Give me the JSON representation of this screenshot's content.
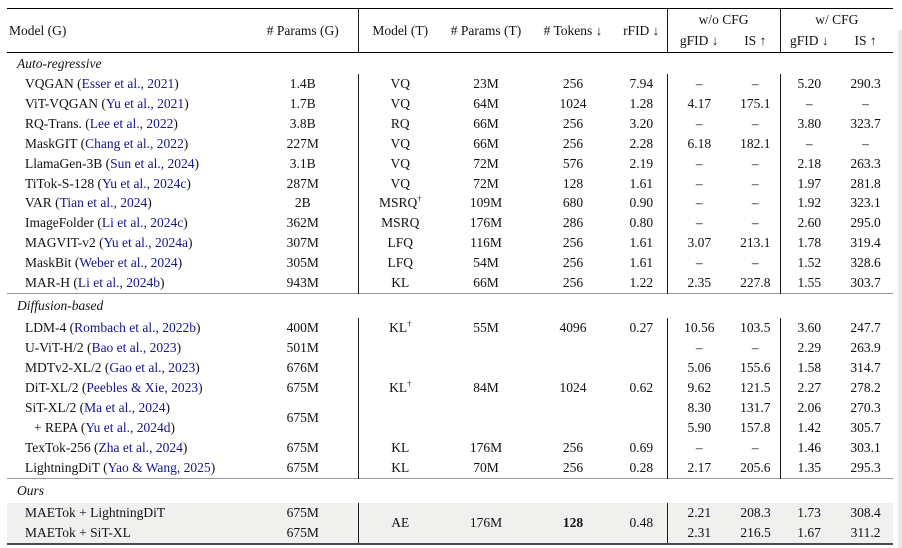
{
  "page": {
    "background": "#ffffff"
  },
  "colors": {
    "citation_link": "#15158c",
    "highlight_row": "#f0f0ee",
    "rule_dark": "#000000",
    "rule_mid": "#999999",
    "right_edge_artifact": "#eaeaea"
  },
  "header": {
    "cols": [
      "Model (G)",
      "# Params (G)",
      "Model (T)",
      "# Params (T)",
      "# Tokens ↓",
      "rFID ↓"
    ],
    "groups": [
      "w/o CFG",
      "w/ CFG"
    ],
    "subcols": [
      "gFID ↓",
      "IS ↑",
      "gFID ↓",
      "IS ↑"
    ]
  },
  "table": {
    "sections": [
      {
        "label": "Auto-regressive",
        "highlight": false,
        "rows": [
          {
            "model": {
              "pre": "VQGAN (",
              "cite": "Esser et al., 2021",
              "post": ")"
            },
            "cells": [
              "1.4B",
              "VQ",
              "23M",
              "256",
              "7.94",
              "–",
              "–",
              "5.20",
              "290.3"
            ]
          },
          {
            "model": {
              "pre": "ViT-VQGAN (",
              "cite": "Yu et al., 2021",
              "post": ")"
            },
            "cells": [
              "1.7B",
              "VQ",
              "64M",
              "1024",
              "1.28",
              "4.17",
              "175.1",
              "–",
              "–"
            ]
          },
          {
            "model": {
              "pre": "RQ-Trans. (",
              "cite": "Lee et al., 2022",
              "post": ")"
            },
            "cells": [
              "3.8B",
              "RQ",
              "66M",
              "256",
              "3.20",
              "–",
              "–",
              "3.80",
              "323.7"
            ]
          },
          {
            "model": {
              "pre": "MaskGIT (",
              "cite": "Chang et al., 2022",
              "post": ")"
            },
            "cells": [
              "227M",
              "VQ",
              "66M",
              "256",
              "2.28",
              "6.18",
              "182.1",
              "–",
              "–"
            ]
          },
          {
            "model": {
              "pre": "LlamaGen-3B (",
              "cite": "Sun et al., 2024",
              "post": ")"
            },
            "cells": [
              "3.1B",
              "VQ",
              "72M",
              "576",
              "2.19",
              "–",
              "–",
              "2.18",
              "263.3"
            ]
          },
          {
            "model": {
              "pre": "TiTok-S-128 (",
              "cite": "Yu et al., 2024c",
              "post": ")"
            },
            "cells": [
              "287M",
              "VQ",
              "72M",
              "128",
              "1.61",
              "–",
              "–",
              "1.97",
              "281.8"
            ]
          },
          {
            "model": {
              "pre": "VAR (",
              "cite": "Tian et al., 2024",
              "post": ")"
            },
            "cells": [
              "2B",
              {
                "t": "MSRQ",
                "sup": "†"
              },
              "109M",
              "680",
              "0.90",
              "–",
              "–",
              "1.92",
              "323.1"
            ]
          },
          {
            "model": {
              "pre": "ImageFolder (",
              "cite": "Li et al., 2024c",
              "post": ")"
            },
            "cells": [
              "362M",
              "MSRQ",
              "176M",
              "286",
              "0.80",
              "–",
              "–",
              "2.60",
              "295.0"
            ]
          },
          {
            "model": {
              "pre": "MAGVIT-v2 (",
              "cite": "Yu et al., 2024a",
              "post": ")"
            },
            "cells": [
              "307M",
              "LFQ",
              "116M",
              "256",
              "1.61",
              "3.07",
              "213.1",
              "1.78",
              "319.4"
            ]
          },
          {
            "model": {
              "pre": "MaskBit (",
              "cite": "Weber et al., 2024",
              "post": ")"
            },
            "cells": [
              "305M",
              "LFQ",
              "54M",
              "256",
              "1.61",
              "–",
              "–",
              "1.52",
              "328.6"
            ]
          },
          {
            "model": {
              "pre": "MAR-H (",
              "cite": "Li et al., 2024b",
              "post": ")"
            },
            "cells": [
              "943M",
              "KL",
              "66M",
              "256",
              "1.22",
              "2.35",
              "227.8",
              "1.55",
              "303.7"
            ]
          }
        ]
      },
      {
        "label": "Diffusion-based",
        "highlight": false,
        "rows": [
          {
            "model": {
              "pre": "LDM-4 (",
              "cite": "Rombach et al., 2022b",
              "post": ")"
            },
            "cells": [
              "400M",
              {
                "t": "KL",
                "sup": "†"
              },
              "55M",
              "4096",
              "0.27",
              "10.56",
              "103.5",
              "3.60",
              "247.7"
            ]
          },
          {
            "model": {
              "pre": "U-ViT-H/2 (",
              "cite": "Bao et al., 2023",
              "post": ")"
            },
            "cells": [
              "501M",
              "",
              "",
              "",
              "",
              "–",
              "–",
              "2.29",
              "263.9"
            ]
          },
          {
            "model": {
              "pre": "MDTv2-XL/2 (",
              "cite": "Gao et al., 2023",
              "post": ")"
            },
            "cells": [
              "676M",
              "",
              "",
              "",
              "",
              "5.06",
              "155.6",
              "1.58",
              "314.7"
            ]
          },
          {
            "model": {
              "pre": "DiT-XL/2 (",
              "cite": "Peebles & Xie, 2023",
              "post": ")"
            },
            "cells": [
              "675M",
              {
                "t": "KL",
                "sup": "†"
              },
              "84M",
              "1024",
              "0.62",
              "9.62",
              "121.5",
              "2.27",
              "278.2"
            ]
          },
          {
            "model": {
              "pre": "SiT-XL/2 (",
              "cite": "Ma et al., 2024",
              "post": ")"
            },
            "cells": [
              {
                "t": "675M",
                "rs": 2
              },
              "",
              "",
              "",
              "",
              "8.30",
              "131.7",
              "2.06",
              "270.3"
            ]
          },
          {
            "model": {
              "pre": "+ REPA (",
              "cite": "Yu et al., 2024d",
              "post": ")",
              "ind": 2
            },
            "cells": [
              {
                "skip": true
              },
              "",
              "",
              "",
              "",
              "5.90",
              "157.8",
              "1.42",
              "305.7"
            ]
          },
          {
            "model": {
              "pre": "TexTok-256 (",
              "cite": "Zha et al., 2024",
              "post": ")"
            },
            "cells": [
              "675M",
              "KL",
              "176M",
              "256",
              "0.69",
              "–",
              "–",
              "1.46",
              "303.1"
            ]
          },
          {
            "model": {
              "pre": "LightningDiT (",
              "cite": "Yao & Wang, 2025",
              "post": ")"
            },
            "cells": [
              "675M",
              "KL",
              "70M",
              "256",
              "0.28",
              "2.17",
              "205.6",
              "1.35",
              "295.3"
            ]
          }
        ]
      },
      {
        "label": "Ours",
        "highlight": true,
        "no_dividers": [
          8
        ],
        "rows": [
          {
            "model": {
              "pre": "MAETok + LightningDiT",
              "cite": "",
              "post": ""
            },
            "cells": [
              "675M",
              {
                "t": "AE",
                "rs": 2
              },
              {
                "t": "176M",
                "rs": 2
              },
              {
                "t": "128",
                "rs": 2,
                "b": true
              },
              {
                "t": "0.48",
                "rs": 2
              },
              "2.21",
              "208.3",
              "1.73",
              "308.4"
            ]
          },
          {
            "model": {
              "pre": "MAETok + SiT-XL",
              "cite": "",
              "post": ""
            },
            "cells": [
              "675M",
              {
                "skip": true
              },
              {
                "skip": true
              },
              {
                "skip": true
              },
              {
                "skip": true
              },
              "2.31",
              "216.5",
              "1.67",
              "311.2"
            ]
          }
        ]
      }
    ]
  }
}
